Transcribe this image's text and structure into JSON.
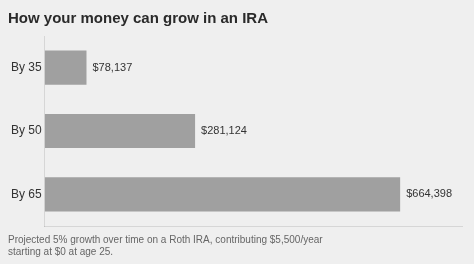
{
  "chart_data": {
    "type": "bar",
    "orientation": "horizontal",
    "title": "How your money can grow in an IRA",
    "categories": [
      "By 35",
      "By 50",
      "By 65"
    ],
    "values": [
      78137,
      281124,
      664398
    ],
    "value_labels": [
      "$78,137",
      "$281,124",
      "$664,398"
    ],
    "data_labels": true,
    "color": "#a0a0a0",
    "xlim": [
      0,
      780000
    ],
    "grid": false,
    "tick_labels": "y",
    "annotations": [
      "Projected 5% growth over time on a Roth IRA, contributing $5,500/year\nstarting at $0 at age 25."
    ]
  }
}
